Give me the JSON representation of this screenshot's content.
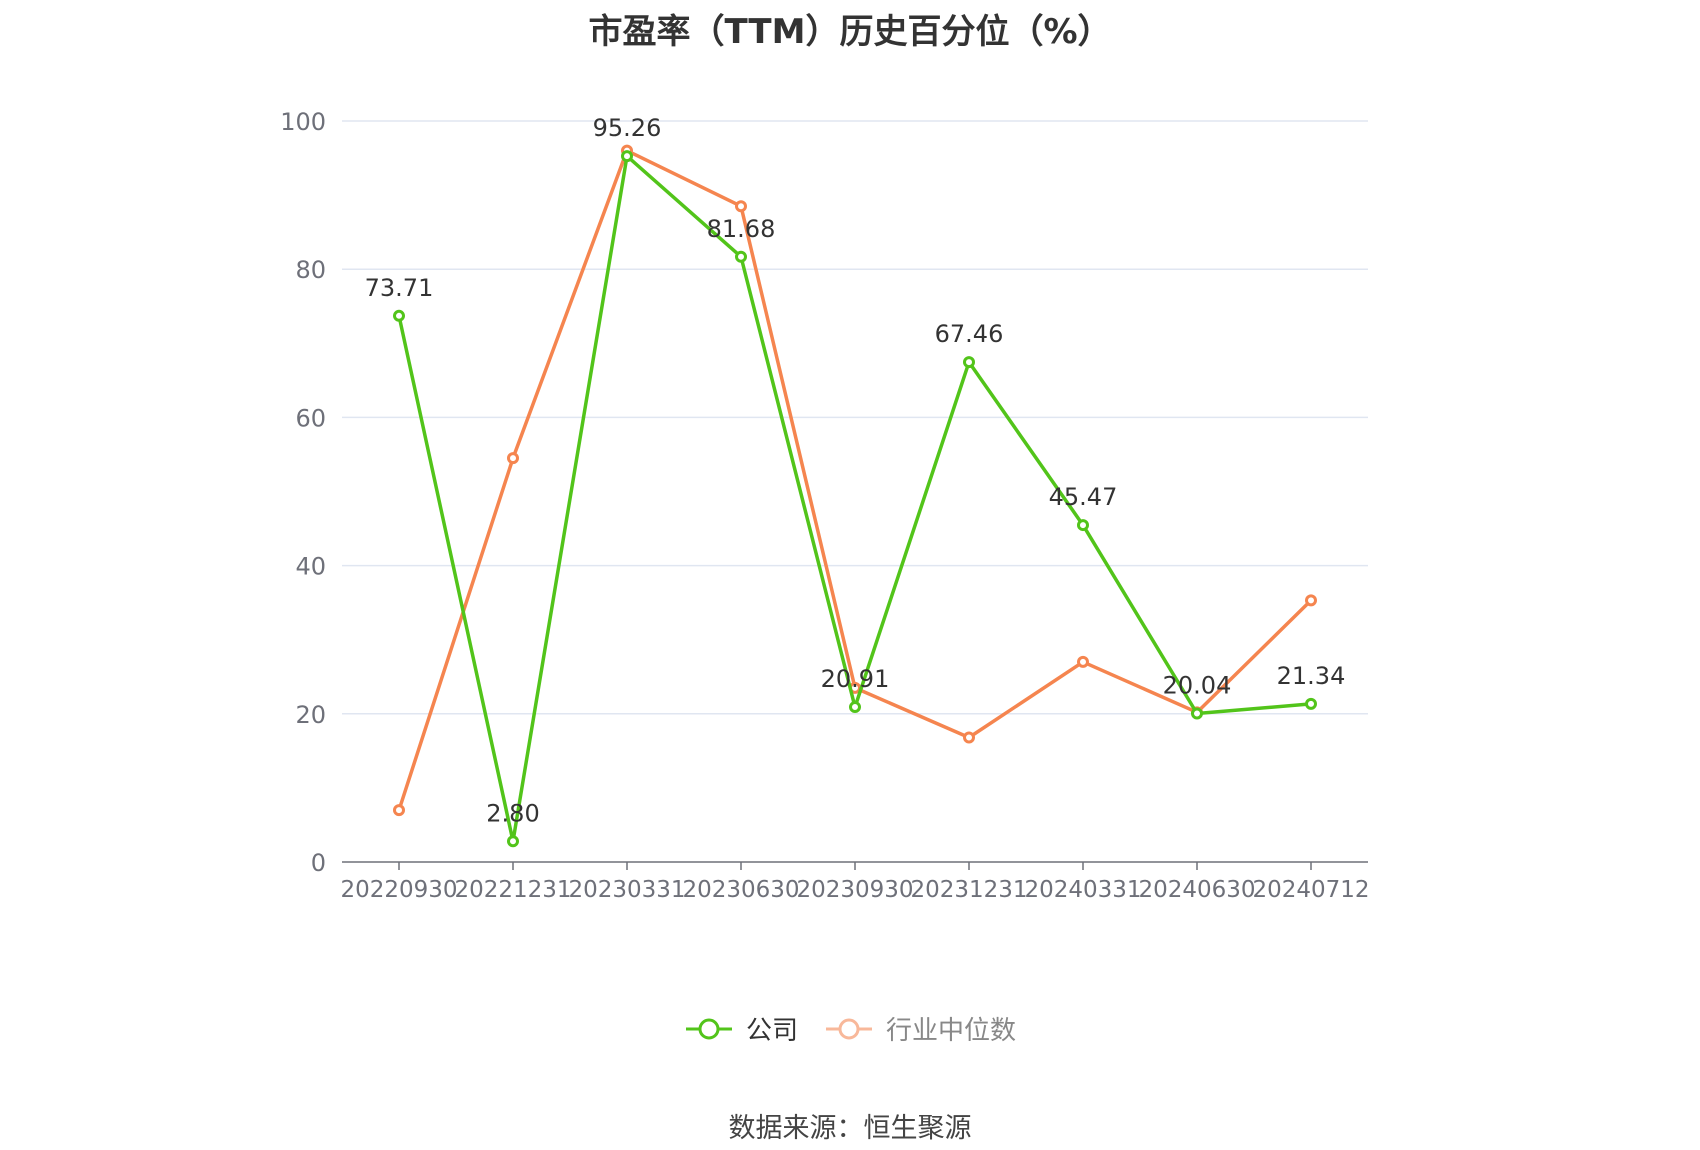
{
  "chart_data": {
    "type": "line",
    "title": "市盈率（TTM）历史百分位（%）",
    "categories": [
      "20220930",
      "20221231",
      "20230331",
      "20230630",
      "20230930",
      "20231231",
      "20240331",
      "20240630",
      "20240712"
    ],
    "ylim": [
      0,
      100
    ],
    "yticks": [
      0,
      20,
      40,
      60,
      80,
      100
    ],
    "grid": true,
    "legend_position": "bottom",
    "series": [
      {
        "name": "公司",
        "color": "#52c41a",
        "values": [
          73.71,
          2.8,
          95.26,
          81.68,
          20.91,
          67.46,
          45.47,
          20.04,
          21.34
        ],
        "labels": [
          "73.71",
          "2.80",
          "95.26",
          "81.68",
          "20.91",
          "67.46",
          "45.47",
          "20.04",
          "21.34"
        ]
      },
      {
        "name": "行业中位数",
        "color": "#f5854f",
        "values": [
          7.0,
          54.5,
          96.0,
          88.5,
          23.5,
          16.8,
          27.0,
          20.2,
          35.3
        ]
      }
    ],
    "source": "数据来源：恒生聚源"
  }
}
